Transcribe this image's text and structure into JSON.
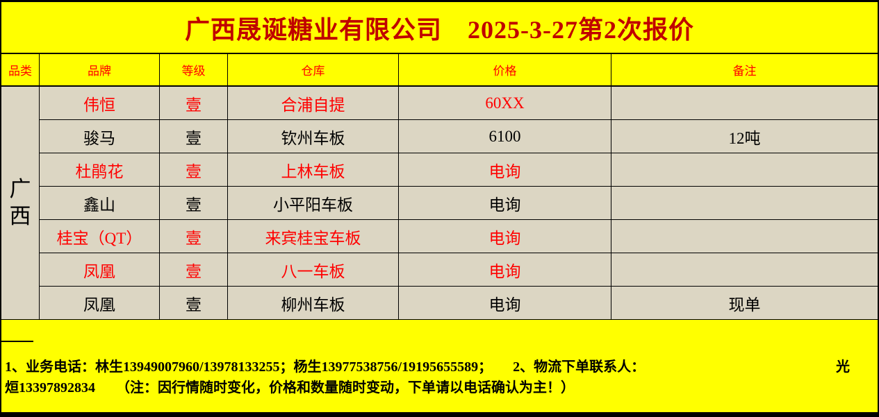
{
  "title": "广西晟诞糖业有限公司　2025-3-27第2次报价",
  "table": {
    "headers": [
      "品类",
      "品牌",
      "等级",
      "仓库",
      "价格",
      "备注"
    ],
    "category_label": "广西",
    "rows": [
      {
        "brand": "伟恒",
        "grade": "壹",
        "warehouse": "合浦自提",
        "price": "60XX",
        "note": "",
        "color": "red"
      },
      {
        "brand": "骏马",
        "grade": "壹",
        "warehouse": "钦州车板",
        "price": "6100",
        "note": "12吨",
        "color": "black"
      },
      {
        "brand": "杜鹃花",
        "grade": "壹",
        "warehouse": "上林车板",
        "price": "电询",
        "note": "",
        "color": "red"
      },
      {
        "brand": "鑫山",
        "grade": "壹",
        "warehouse": "小平阳车板",
        "price": "电询",
        "note": "",
        "color": "black"
      },
      {
        "brand": "桂宝（QT）",
        "grade": "壹",
        "warehouse": "来宾桂宝车板",
        "price": "电询",
        "note": "",
        "color": "red"
      },
      {
        "brand": "凤凰",
        "grade": "壹",
        "warehouse": "八一车板",
        "price": "电询",
        "note": "",
        "color": "red"
      },
      {
        "brand": "凤凰",
        "grade": "壹",
        "warehouse": "柳州车板",
        "price": "电询",
        "note": "现单",
        "color": "black"
      }
    ]
  },
  "footer": {
    "line1_left": "1、业务电话：林生13949007960/13978133255；杨生13977538756/19195655589；　　2、物流下单联系人：",
    "line1_right": "光",
    "line2": "烜13397892834　　（注：因行情随时变化，价格和数量随时变动，下单请以电话确认为主！）"
  },
  "colors": {
    "background": "#ffff00",
    "cell_background": "#dcd6c3",
    "red": "#ff0000",
    "title_red": "#c00000"
  }
}
